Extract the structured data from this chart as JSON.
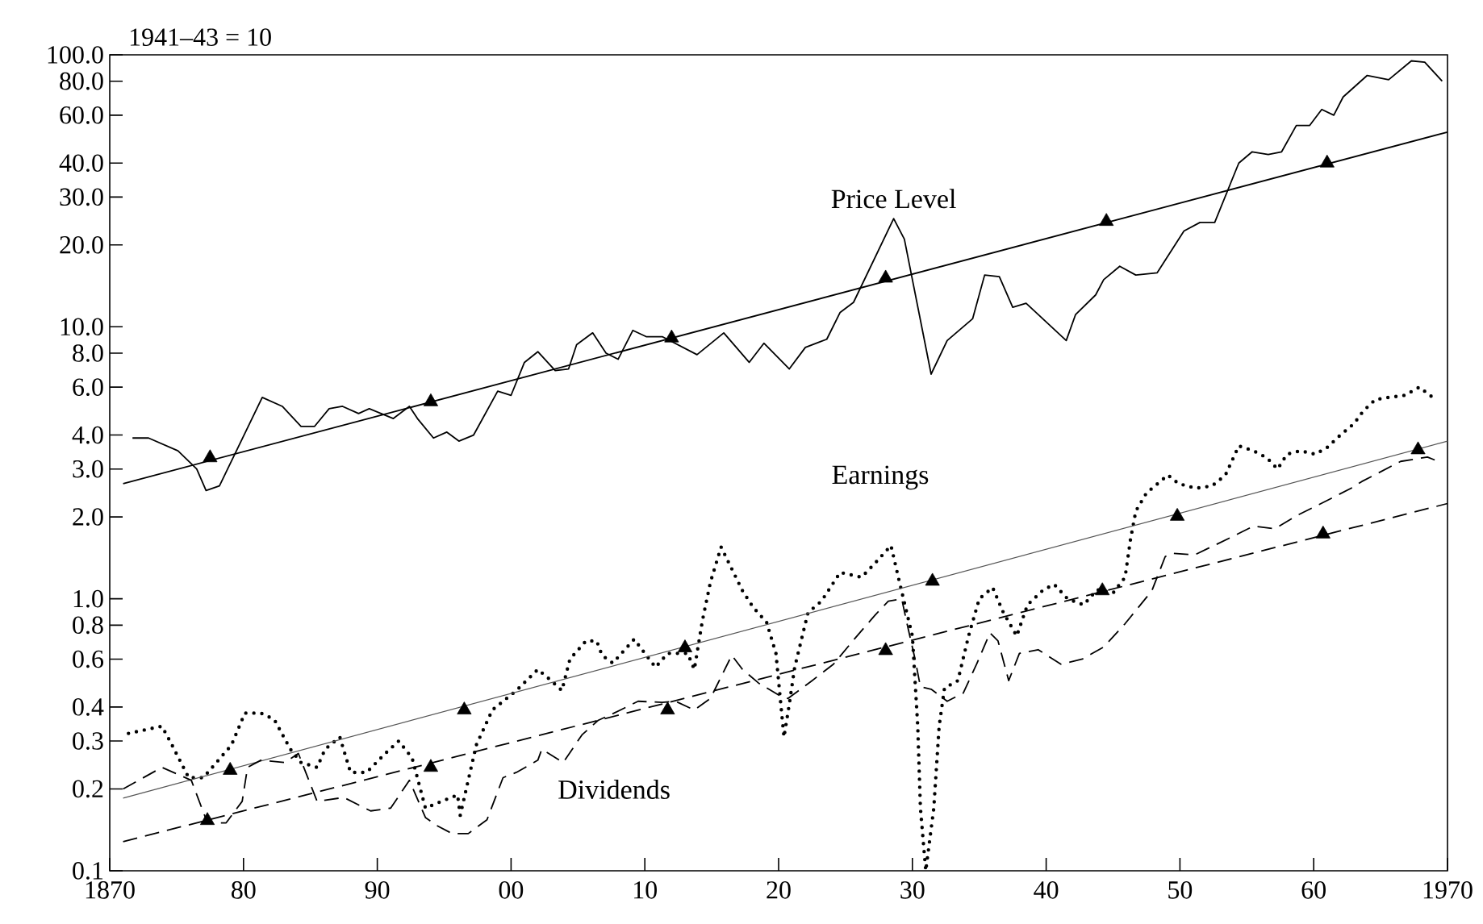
{
  "chart_data": {
    "type": "line",
    "ylabel": "1941–43 = 10",
    "log": "y",
    "grid": false,
    "legend": false,
    "xlim": [
      1870,
      1970
    ],
    "xticks": [
      1870,
      {
        "value": 1880,
        "label": "80"
      },
      {
        "value": 1890,
        "label": "90"
      },
      {
        "value": 1900,
        "label": "00"
      },
      {
        "value": 1910,
        "label": "10"
      },
      {
        "value": 1920,
        "label": "20"
      },
      {
        "value": 1930,
        "label": "30"
      },
      {
        "value": 1940,
        "label": "40"
      },
      {
        "value": 1950,
        "label": "50"
      },
      {
        "value": 1960,
        "label": "60"
      },
      1970
    ],
    "ylim": [
      0.1,
      100
    ],
    "yticks": [
      0.1,
      0.2,
      0.3,
      0.4,
      0.6,
      0.8,
      {
        "value": 1,
        "label": "1.0"
      },
      {
        "value": 2,
        "label": "2.0"
      },
      {
        "value": 3,
        "label": "3.0"
      },
      {
        "value": 4,
        "label": "4.0"
      },
      {
        "value": 6,
        "label": "6.0"
      },
      {
        "value": 8,
        "label": "8.0"
      },
      {
        "value": 10,
        "label": "10.0"
      },
      {
        "value": 20,
        "label": "20.0"
      },
      {
        "value": 30,
        "label": "30.0"
      },
      {
        "value": 40,
        "label": "40.0"
      },
      {
        "value": 60,
        "label": "60.0"
      },
      {
        "value": 80,
        "label": "80.0"
      },
      {
        "value": 100,
        "label": "100.0"
      }
    ],
    "series": [
      {
        "name": "Price Level",
        "color": "#000000",
        "line_style": "solid",
        "x": [
          1871.7,
          1872.9,
          1875.1,
          1876.5,
          1877.2,
          1878.2,
          1881.4,
          1882.9,
          1884.3,
          1885.3,
          1886.4,
          1887.4,
          1888.6,
          1889.4,
          1891.2,
          1892.4,
          1893.0,
          1894.2,
          1895.2,
          1896.1,
          1897.2,
          1899.0,
          1900.0,
          1901.0,
          1902.0,
          1903.3,
          1904.3,
          1904.9,
          1906.1,
          1907.1,
          1908.0,
          1909.1,
          1910.1,
          1911.3,
          1913.9,
          1915.9,
          1917.8,
          1918.9,
          1920.8,
          1922.0,
          1923.6,
          1924.6,
          1925.6,
          1928.6,
          1929.4,
          1931.4,
          1932.6,
          1934.5,
          1935.4,
          1936.5,
          1937.5,
          1938.5,
          1941.5,
          1942.2,
          1943.7,
          1944.3,
          1945.5,
          1946.7,
          1948.3,
          1950.3,
          1951.5,
          1952.6,
          1954.4,
          1955.4,
          1956.6,
          1957.6,
          1958.7,
          1959.7,
          1960.6,
          1961.5,
          1962.2,
          1964.0,
          1965.6,
          1967.3,
          1968.3,
          1969.6
        ],
        "values": [
          3.9,
          3.9,
          3.5,
          3.0,
          2.5,
          2.6,
          5.5,
          5.1,
          4.3,
          4.3,
          5.0,
          5.1,
          4.8,
          5.0,
          4.6,
          5.1,
          4.6,
          3.9,
          4.1,
          3.8,
          4.0,
          5.8,
          5.6,
          7.4,
          8.1,
          6.9,
          7.0,
          8.6,
          9.5,
          8.0,
          7.6,
          9.7,
          9.2,
          9.2,
          7.9,
          9.5,
          7.4,
          8.7,
          7.0,
          8.4,
          9.0,
          11.3,
          12.3,
          25.0,
          21.0,
          6.7,
          8.9,
          10.7,
          15.5,
          15.3,
          11.8,
          12.2,
          8.9,
          11.1,
          13.1,
          14.9,
          16.7,
          15.5,
          15.8,
          22.5,
          24.2,
          24.2,
          40.0,
          44.0,
          43.0,
          44.0,
          55.0,
          55.0,
          63.0,
          60.0,
          70.0,
          84.0,
          81.0,
          95.0,
          94.0,
          80.0
        ]
      },
      {
        "color": "#000000",
        "line_style": "solid",
        "x": [
          1871,
          1970
        ],
        "values": [
          2.65,
          52
        ]
      },
      {
        "name": "Earnings",
        "color": "#000000",
        "line_style": "dotted",
        "x": [
          1871.4,
          1873.9,
          1874.5,
          1875.9,
          1877.0,
          1879.1,
          1880.1,
          1881.3,
          1882.3,
          1883.5,
          1884.3,
          1885.5,
          1886.1,
          1887.2,
          1888.0,
          1889.2,
          1890.6,
          1891.6,
          1892.6,
          1893.6,
          1894.8,
          1896.0,
          1896.2,
          1897.4,
          1898.6,
          1899.4,
          1900.4,
          1902.0,
          1903.0,
          1903.8,
          1904.4,
          1905.6,
          1906.4,
          1906.8,
          1907.6,
          1909.2,
          1910.0,
          1910.8,
          1911.7,
          1913.2,
          1913.7,
          1914.3,
          1914.9,
          1915.7,
          1917.3,
          1918.1,
          1919.1,
          1919.8,
          1920.4,
          1920.8,
          1921.2,
          1922.2,
          1923.2,
          1924.6,
          1926.2,
          1927.2,
          1928.4,
          1929.0,
          1930.0,
          1930.4,
          1930.6,
          1931.0,
          1931.6,
          1932.0,
          1932.4,
          1933.4,
          1934.2,
          1935.0,
          1936.0,
          1936.8,
          1937.8,
          1938.6,
          1939.8,
          1940.6,
          1941.6,
          1942.8,
          1943.8,
          1945.0,
          1945.9,
          1946.3,
          1946.7,
          1947.5,
          1949.1,
          1949.9,
          1951.2,
          1952.4,
          1953.4,
          1954.4,
          1955.5,
          1956.5,
          1957.3,
          1958.0,
          1959.0,
          1960.1,
          1961.0,
          1962.0,
          1963.0,
          1963.7,
          1964.6,
          1965.6,
          1966.8,
          1967.9,
          1968.9
        ],
        "values": [
          0.32,
          0.34,
          0.3,
          0.22,
          0.22,
          0.29,
          0.38,
          0.38,
          0.36,
          0.28,
          0.25,
          0.24,
          0.28,
          0.31,
          0.23,
          0.23,
          0.27,
          0.3,
          0.26,
          0.17,
          0.18,
          0.19,
          0.16,
          0.29,
          0.39,
          0.42,
          0.46,
          0.55,
          0.5,
          0.46,
          0.6,
          0.7,
          0.7,
          0.62,
          0.58,
          0.71,
          0.63,
          0.56,
          0.63,
          0.63,
          0.55,
          0.83,
          1.15,
          1.55,
          1.07,
          0.93,
          0.82,
          0.63,
          0.31,
          0.41,
          0.56,
          0.89,
          0.98,
          1.25,
          1.2,
          1.35,
          1.57,
          1.17,
          0.73,
          0.34,
          0.17,
          0.1,
          0.17,
          0.34,
          0.47,
          0.5,
          0.73,
          1.0,
          1.1,
          0.89,
          0.73,
          0.95,
          1.08,
          1.13,
          1.0,
          0.95,
          1.08,
          1.05,
          1.2,
          1.65,
          2.1,
          2.45,
          2.85,
          2.65,
          2.55,
          2.6,
          2.85,
          3.65,
          3.5,
          3.3,
          3.0,
          3.4,
          3.5,
          3.4,
          3.6,
          4.0,
          4.4,
          4.9,
          5.4,
          5.5,
          5.6,
          6.0,
          5.5
        ]
      },
      {
        "color": "#555555",
        "line_style": "solid",
        "x": [
          1871,
          1970
        ],
        "values": [
          0.185,
          3.8
        ]
      },
      {
        "name": "Dividends",
        "color": "#000000",
        "line_style": "dashed",
        "x": [
          1871.0,
          1873.9,
          1876.1,
          1877.3,
          1878.7,
          1879.9,
          1880.3,
          1881.3,
          1883.1,
          1884.1,
          1885.5,
          1887.5,
          1889.5,
          1891.0,
          1892.4,
          1893.6,
          1894.4,
          1895.6,
          1896.8,
          1898.2,
          1899.4,
          1900.4,
          1902.0,
          1902.3,
          1903.9,
          1905.3,
          1906.5,
          1907.7,
          1909.5,
          1911.3,
          1912.3,
          1913.7,
          1914.9,
          1916.5,
          1917.3,
          1918.5,
          1920.1,
          1920.7,
          1922.5,
          1924.1,
          1925.7,
          1927.2,
          1928.2,
          1929.2,
          1929.6,
          1930.2,
          1930.6,
          1931.4,
          1932.6,
          1933.8,
          1934.8,
          1935.8,
          1936.4,
          1937.2,
          1938.0,
          1939.4,
          1941.1,
          1942.7,
          1944.3,
          1945.9,
          1947.9,
          1948.9,
          1949.5,
          1951.1,
          1953.9,
          1955.5,
          1957.1,
          1958.8,
          1960.4,
          1962.8,
          1963.6,
          1966.5,
          1968.5,
          1969.3
        ],
        "values": [
          0.2,
          0.24,
          0.215,
          0.15,
          0.15,
          0.18,
          0.24,
          0.255,
          0.25,
          0.27,
          0.18,
          0.186,
          0.166,
          0.17,
          0.215,
          0.157,
          0.147,
          0.137,
          0.137,
          0.154,
          0.22,
          0.23,
          0.255,
          0.28,
          0.25,
          0.316,
          0.357,
          0.38,
          0.42,
          0.416,
          0.42,
          0.39,
          0.43,
          0.62,
          0.55,
          0.49,
          0.44,
          0.43,
          0.5,
          0.575,
          0.715,
          0.87,
          0.98,
          1.0,
          0.81,
          0.6,
          0.475,
          0.465,
          0.42,
          0.45,
          0.575,
          0.75,
          0.7,
          0.5,
          0.63,
          0.65,
          0.575,
          0.6,
          0.665,
          0.81,
          1.07,
          1.43,
          1.47,
          1.45,
          1.69,
          1.85,
          1.81,
          2.03,
          2.22,
          2.55,
          2.7,
          3.2,
          3.32,
          3.2
        ]
      },
      {
        "color": "#000000",
        "line_style": "dashed",
        "x": [
          1871,
          1970
        ],
        "values": [
          0.128,
          2.24
        ]
      },
      {
        "type": "scatter",
        "color": "#000000",
        "marker": "triangle",
        "x": [
          1877.5,
          1894,
          1912,
          1928,
          1944.5,
          1961,
          1879,
          1896.5,
          1913,
          1931.5,
          1949.8,
          1967.8,
          1877.3,
          1894,
          1911.7,
          1928,
          1944.2,
          1960.7
        ],
        "values": [
          3.3,
          5.3,
          9.1,
          15.1,
          24.4,
          40,
          0.234,
          0.39,
          0.66,
          1.16,
          2.01,
          3.53,
          0.153,
          0.24,
          0.39,
          0.645,
          1.07,
          1.73
        ]
      }
    ]
  }
}
